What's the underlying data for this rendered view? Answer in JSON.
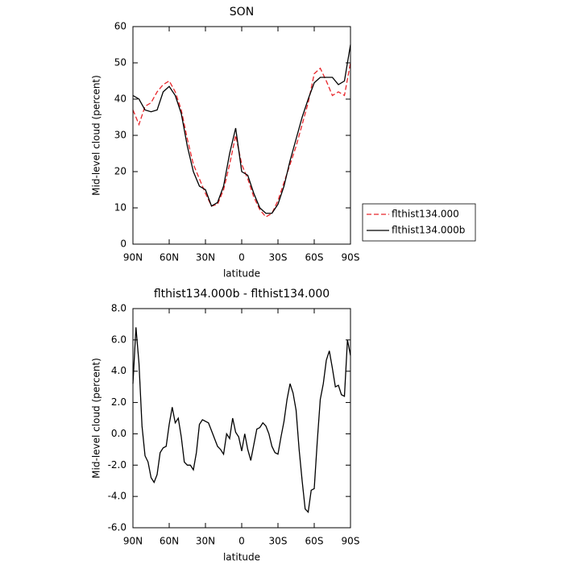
{
  "chart_data": [
    {
      "type": "line",
      "title": "SON",
      "xlabel": "latitude",
      "ylabel": "Mid-level cloud (percent)",
      "x": [
        90,
        85,
        80,
        75,
        70,
        65,
        60,
        55,
        50,
        45,
        40,
        35,
        30,
        25,
        20,
        15,
        10,
        5,
        0,
        -5,
        -10,
        -15,
        -20,
        -25,
        -30,
        -35,
        -40,
        -45,
        -50,
        -55,
        -60,
        -65,
        -70,
        -75,
        -80,
        -85,
        -90
      ],
      "series": [
        {
          "name": "flthist134.000",
          "color": "#e8262b",
          "line_style": "dashed",
          "values": [
            37,
            33,
            38,
            39,
            42,
            44,
            45,
            42,
            37,
            29,
            22,
            18,
            14,
            10.5,
            11,
            15,
            22,
            30,
            22,
            18,
            13,
            9.5,
            7.5,
            8.5,
            12,
            17,
            22,
            27,
            33,
            39,
            47,
            48.5,
            45,
            41,
            42,
            41,
            50
          ]
        },
        {
          "name": "flthist134.000b",
          "color": "#000000",
          "line_style": "solid",
          "values": [
            41,
            40,
            37,
            36.5,
            37,
            42,
            43.5,
            41,
            36,
            27,
            20,
            16,
            15,
            10.5,
            11.5,
            16,
            25,
            32,
            20,
            19,
            14,
            10,
            8.5,
            8.5,
            11,
            16,
            23,
            29,
            35,
            40,
            44.5,
            46,
            46,
            46,
            44,
            45,
            55
          ]
        }
      ],
      "xlim": [
        90,
        -90
      ],
      "xticks": [
        {
          "value": 90,
          "label": "90N"
        },
        {
          "value": 60,
          "label": "60N"
        },
        {
          "value": 30,
          "label": "30N"
        },
        0,
        {
          "value": -30,
          "label": "30S"
        },
        {
          "value": -60,
          "label": "60S"
        },
        {
          "value": -90,
          "label": "90S"
        }
      ],
      "ylim": [
        0,
        60
      ],
      "yticks": [
        0,
        10,
        20,
        30,
        40,
        50,
        60
      ],
      "legend": "right"
    },
    {
      "type": "line",
      "title": "flthist134.000b - flthist134.000",
      "xlabel": "latitude",
      "ylabel": "Mid-level cloud (percent)",
      "x": [
        90,
        87.5,
        85,
        82.5,
        80,
        77.5,
        75,
        72.5,
        70,
        67.5,
        65,
        62.5,
        60,
        57.5,
        55,
        52.5,
        50,
        47.5,
        45,
        42.5,
        40,
        37.5,
        35,
        32.5,
        30,
        27.5,
        25,
        22.5,
        20,
        17.5,
        15,
        12.5,
        10,
        7.5,
        5,
        2.5,
        0,
        -2.5,
        -5,
        -7.5,
        -10,
        -12.5,
        -15,
        -17.5,
        -20,
        -22.5,
        -25,
        -27.5,
        -30,
        -32.5,
        -35,
        -37.5,
        -40,
        -42.5,
        -45,
        -47.5,
        -50,
        -52.5,
        -55,
        -57.5,
        -60,
        -62.5,
        -65,
        -67.5,
        -70,
        -72.5,
        -75,
        -77.5,
        -80,
        -82.5,
        -85,
        -87.5,
        -90
      ],
      "color": "#000000",
      "values": [
        3.2,
        6.8,
        4.5,
        0.5,
        -1.4,
        -1.8,
        -2.8,
        -3.1,
        -2.6,
        -1.2,
        -0.9,
        -0.8,
        0.6,
        1.7,
        0.7,
        1.0,
        -0.2,
        -1.8,
        -2.0,
        -2.0,
        -2.3,
        -1.2,
        0.6,
        0.9,
        0.8,
        0.7,
        0.2,
        -0.3,
        -0.8,
        -1.0,
        -1.3,
        0.0,
        -0.3,
        1.0,
        0.1,
        -0.2,
        -1.1,
        0.0,
        -1.0,
        -1.7,
        -0.7,
        0.3,
        0.4,
        0.7,
        0.5,
        0.0,
        -0.8,
        -1.2,
        -1.3,
        -0.2,
        0.8,
        2.2,
        3.2,
        2.6,
        1.5,
        -1.0,
        -3.0,
        -4.8,
        -5.0,
        -3.6,
        -3.5,
        -0.5,
        2.2,
        3.2,
        4.7,
        5.3,
        4.2,
        3.0,
        3.1,
        2.5,
        2.4,
        6.0,
        5.0
      ],
      "xlim": [
        90,
        -90
      ],
      "xticks": [
        {
          "value": 90,
          "label": "90N"
        },
        {
          "value": 60,
          "label": "60N"
        },
        {
          "value": 30,
          "label": "30N"
        },
        0,
        {
          "value": -30,
          "label": "30S"
        },
        {
          "value": -60,
          "label": "60S"
        },
        {
          "value": -90,
          "label": "90S"
        }
      ],
      "ylim": [
        -6,
        8
      ],
      "yticks": [
        {
          "value": -6,
          "label": "-6.0"
        },
        {
          "value": -4,
          "label": "-4.0"
        },
        {
          "value": -2,
          "label": "-2.0"
        },
        {
          "value": 0,
          "label": "0.0"
        },
        {
          "value": 2,
          "label": "2.0"
        },
        {
          "value": 4,
          "label": "4.0"
        },
        {
          "value": 6,
          "label": "6.0"
        },
        {
          "value": 8,
          "label": "8.0"
        }
      ]
    }
  ]
}
